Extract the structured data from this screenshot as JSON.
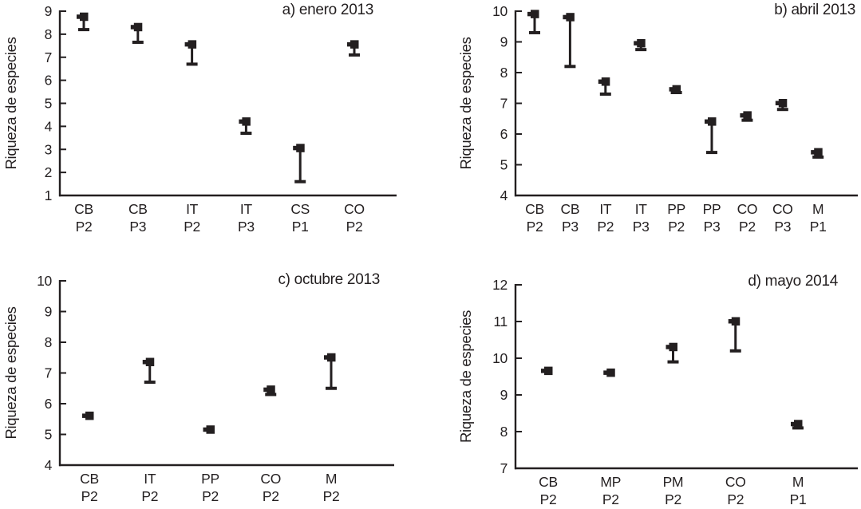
{
  "figure": {
    "background": "#ffffff",
    "ink_color": "#231f20"
  },
  "chart_data": [
    {
      "id": "a",
      "type": "scatter",
      "title": "a) enero 2013",
      "ylabel": "Riqueza de especies",
      "xlabel": "",
      "ylim": [
        1,
        9
      ],
      "ytick_step": 1,
      "grid": false,
      "legend": "none",
      "marker": "filled-square-with-lower-error-bar",
      "categories": [
        "CB P2",
        "CB P3",
        "IT P2",
        "IT P3",
        "CS P1",
        "CO P2"
      ],
      "values": [
        8.75,
        8.3,
        7.55,
        4.2,
        3.05,
        7.55
      ],
      "lower_bounds": [
        8.2,
        7.65,
        6.7,
        3.7,
        1.6,
        7.1
      ]
    },
    {
      "id": "b",
      "type": "scatter",
      "title": "b) abril 2013",
      "ylabel": "Riqueza de especies",
      "xlabel": "",
      "ylim": [
        4,
        10
      ],
      "ytick_step": 1,
      "grid": false,
      "legend": "none",
      "marker": "filled-square-with-lower-error-bar",
      "categories": [
        "CB P2",
        "CB P3",
        "IT P2",
        "IT P3",
        "PP P2",
        "PP P3",
        "CO P2",
        "CO P3",
        "M P1"
      ],
      "values": [
        9.9,
        9.8,
        7.7,
        8.95,
        7.45,
        6.4,
        6.6,
        7.0,
        5.4
      ],
      "lower_bounds": [
        9.3,
        8.2,
        7.3,
        8.75,
        7.35,
        5.4,
        6.45,
        6.8,
        5.25
      ]
    },
    {
      "id": "c",
      "type": "scatter",
      "title": "c) octubre 2013",
      "ylabel": "Riqueza de especies",
      "xlabel": "",
      "ylim": [
        4,
        10
      ],
      "ytick_step": 1,
      "grid": false,
      "legend": "none",
      "marker": "filled-square-with-lower-error-bar",
      "categories": [
        "CB P2",
        "IT P2",
        "PP P2",
        "CO P2",
        "M P2"
      ],
      "values": [
        5.6,
        7.35,
        5.15,
        6.45,
        7.5
      ],
      "lower_bounds": [
        null,
        6.7,
        null,
        6.3,
        6.5
      ]
    },
    {
      "id": "d",
      "type": "scatter",
      "title": "d) mayo 2014",
      "ylabel": "Riqueza de especies",
      "xlabel": "",
      "ylim": [
        7,
        12
      ],
      "ytick_step": 1,
      "grid": false,
      "legend": "none",
      "marker": "filled-square-with-lower-error-bar",
      "categories": [
        "CB P2",
        "MP P2",
        "PM P2",
        "CO P2",
        "M P1"
      ],
      "values": [
        9.65,
        9.6,
        10.3,
        11.0,
        8.2
      ],
      "lower_bounds": [
        null,
        null,
        9.9,
        10.2,
        8.1
      ]
    }
  ]
}
